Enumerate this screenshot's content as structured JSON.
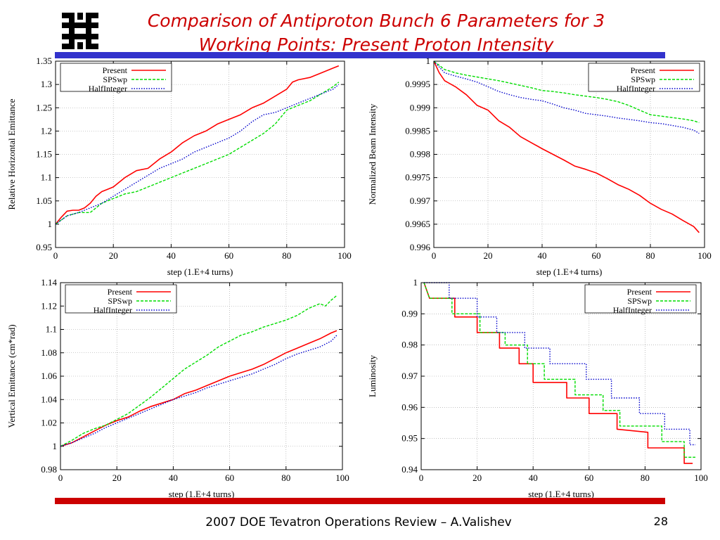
{
  "slide": {
    "title_line1": "Comparison of Antiproton Bunch 6 Parameters for 3",
    "title_line2": "Working Points: Present Proton Intensity",
    "footer": "2007 DOE Tevatron Operations Review – A.Valishev",
    "page_number": "28",
    "logo_icon": "fermilab-logo-icon",
    "colors": {
      "title": "#cc0000",
      "top_bar": "#3333cc",
      "bottom_bar": "#cc0000"
    }
  },
  "chart_data": [
    {
      "type": "line",
      "xlabel": "step (1.E+4 turns)",
      "ylabel": "Relative Horizontal Emittance",
      "xlim": [
        0,
        100
      ],
      "ylim": [
        0.95,
        1.35
      ],
      "xticks": [
        "0",
        "20",
        "40",
        "60",
        "80",
        "100"
      ],
      "yticks": [
        "0.95",
        "1",
        "1.05",
        "1.1",
        "1.15",
        "1.2",
        "1.25",
        "1.3",
        "1.35"
      ],
      "grid": true,
      "legend": "top-left",
      "series": [
        {
          "name": "Present",
          "color": "#ff0000",
          "dash": "solid",
          "x": [
            0,
            2,
            4,
            6,
            8,
            10,
            12,
            14,
            16,
            18,
            20,
            24,
            28,
            32,
            36,
            40,
            44,
            48,
            52,
            56,
            60,
            64,
            68,
            72,
            76,
            80,
            82,
            84,
            88,
            92,
            96,
            98
          ],
          "y": [
            1.0,
            1.015,
            1.028,
            1.03,
            1.03,
            1.035,
            1.045,
            1.06,
            1.07,
            1.075,
            1.08,
            1.1,
            1.115,
            1.12,
            1.14,
            1.155,
            1.175,
            1.19,
            1.2,
            1.215,
            1.225,
            1.235,
            1.25,
            1.26,
            1.275,
            1.29,
            1.305,
            1.31,
            1.315,
            1.325,
            1.335,
            1.34
          ]
        },
        {
          "name": "SPSwp",
          "color": "#00dd00",
          "dash": "dashed",
          "x": [
            0,
            4,
            8,
            12,
            16,
            20,
            24,
            28,
            32,
            36,
            40,
            44,
            48,
            52,
            56,
            60,
            64,
            68,
            72,
            76,
            80,
            84,
            88,
            92,
            96,
            98
          ],
          "y": [
            1.0,
            1.018,
            1.025,
            1.025,
            1.045,
            1.055,
            1.065,
            1.07,
            1.08,
            1.09,
            1.1,
            1.11,
            1.12,
            1.13,
            1.14,
            1.15,
            1.165,
            1.18,
            1.195,
            1.215,
            1.245,
            1.255,
            1.265,
            1.28,
            1.295,
            1.305
          ]
        },
        {
          "name": "HalfInteger",
          "color": "#0000cc",
          "dash": "dotted",
          "x": [
            0,
            4,
            8,
            12,
            16,
            20,
            24,
            28,
            32,
            36,
            40,
            44,
            48,
            52,
            56,
            60,
            64,
            68,
            72,
            76,
            80,
            84,
            88,
            92,
            96,
            98
          ],
          "y": [
            1.0,
            1.018,
            1.025,
            1.035,
            1.045,
            1.06,
            1.075,
            1.09,
            1.105,
            1.12,
            1.13,
            1.14,
            1.155,
            1.165,
            1.175,
            1.185,
            1.2,
            1.22,
            1.235,
            1.24,
            1.25,
            1.26,
            1.27,
            1.28,
            1.29,
            1.3
          ]
        }
      ]
    },
    {
      "type": "line",
      "xlabel": "step (1.E+4 turns)",
      "ylabel": "Normalized Beam Intensity",
      "xlim": [
        0,
        100
      ],
      "ylim": [
        0.996,
        1.0
      ],
      "xticks": [
        "0",
        "20",
        "40",
        "60",
        "80",
        "100"
      ],
      "yticks": [
        "0.996",
        "0.9965",
        "0.997",
        "0.9975",
        "0.998",
        "0.9985",
        "0.999",
        "0.9995",
        "1"
      ],
      "grid": true,
      "legend": "top-right",
      "series": [
        {
          "name": "Present",
          "color": "#ff0000",
          "dash": "solid",
          "x": [
            0,
            2,
            4,
            8,
            12,
            16,
            20,
            24,
            28,
            32,
            36,
            40,
            44,
            48,
            52,
            56,
            60,
            64,
            68,
            72,
            76,
            80,
            84,
            88,
            92,
            96,
            98
          ],
          "y": [
            1.0,
            0.99975,
            0.99958,
            0.99945,
            0.99928,
            0.99905,
            0.99895,
            0.99872,
            0.99858,
            0.99838,
            0.99825,
            0.99812,
            0.998,
            0.99788,
            0.99775,
            0.99768,
            0.9976,
            0.99748,
            0.99735,
            0.99725,
            0.99712,
            0.99695,
            0.99682,
            0.99672,
            0.99658,
            0.99645,
            0.99632
          ]
        },
        {
          "name": "SPSwp",
          "color": "#00dd00",
          "dash": "dashed",
          "x": [
            0,
            4,
            8,
            12,
            16,
            20,
            24,
            28,
            32,
            36,
            40,
            44,
            48,
            52,
            56,
            60,
            64,
            68,
            72,
            76,
            80,
            84,
            88,
            92,
            96,
            98
          ],
          "y": [
            1.0,
            0.99982,
            0.99975,
            0.9997,
            0.99966,
            0.99962,
            0.99958,
            0.99953,
            0.99948,
            0.99943,
            0.99937,
            0.99935,
            0.99932,
            0.99928,
            0.99925,
            0.99922,
            0.99918,
            0.99913,
            0.99905,
            0.99895,
            0.99885,
            0.99882,
            0.99879,
            0.99876,
            0.99872,
            0.99868
          ]
        },
        {
          "name": "HalfInteger",
          "color": "#0000cc",
          "dash": "dotted",
          "x": [
            0,
            4,
            8,
            12,
            16,
            20,
            24,
            28,
            32,
            36,
            40,
            44,
            48,
            52,
            56,
            60,
            64,
            68,
            72,
            76,
            80,
            84,
            88,
            92,
            96,
            98
          ],
          "y": [
            1.0,
            0.99975,
            0.99968,
            0.99962,
            0.99955,
            0.99945,
            0.99935,
            0.99928,
            0.99922,
            0.99918,
            0.99915,
            0.99908,
            0.999,
            0.99895,
            0.99888,
            0.99885,
            0.99882,
            0.99878,
            0.99875,
            0.99872,
            0.99868,
            0.99866,
            0.99862,
            0.99858,
            0.99852,
            0.99845
          ]
        }
      ]
    },
    {
      "type": "line",
      "xlabel": "step (1.E+4 turns)",
      "ylabel": "Vertical Emittance (cm*rad)",
      "xlim": [
        0,
        100
      ],
      "ylim": [
        0.98,
        1.14
      ],
      "xticks": [
        "0",
        "20",
        "40",
        "60",
        "80",
        "100"
      ],
      "yticks": [
        "0.98",
        "1",
        "1.02",
        "1.04",
        "1.06",
        "1.08",
        "1.1",
        "1.12",
        "1.14"
      ],
      "grid": true,
      "legend": "top-left",
      "series": [
        {
          "name": "Present",
          "color": "#ff0000",
          "dash": "solid",
          "x": [
            0,
            4,
            8,
            12,
            16,
            20,
            24,
            28,
            32,
            36,
            40,
            44,
            48,
            52,
            56,
            60,
            64,
            68,
            72,
            76,
            80,
            84,
            88,
            92,
            96,
            98
          ],
          "y": [
            1.0,
            1.003,
            1.008,
            1.013,
            1.018,
            1.022,
            1.025,
            1.03,
            1.034,
            1.037,
            1.04,
            1.045,
            1.048,
            1.052,
            1.056,
            1.06,
            1.063,
            1.066,
            1.07,
            1.075,
            1.08,
            1.084,
            1.088,
            1.092,
            1.097,
            1.099
          ]
        },
        {
          "name": "SPSwp",
          "color": "#00dd00",
          "dash": "dashed",
          "x": [
            0,
            4,
            8,
            12,
            16,
            20,
            24,
            28,
            32,
            36,
            40,
            44,
            48,
            52,
            56,
            60,
            64,
            68,
            72,
            76,
            80,
            84,
            88,
            92,
            94,
            96,
            98
          ],
          "y": [
            1.0,
            1.005,
            1.011,
            1.015,
            1.018,
            1.023,
            1.028,
            1.035,
            1.042,
            1.05,
            1.058,
            1.066,
            1.072,
            1.078,
            1.085,
            1.09,
            1.095,
            1.098,
            1.102,
            1.105,
            1.108,
            1.112,
            1.118,
            1.122,
            1.12,
            1.125,
            1.129
          ]
        },
        {
          "name": "HalfInteger",
          "color": "#0000cc",
          "dash": "dotted",
          "x": [
            0,
            4,
            8,
            12,
            16,
            20,
            24,
            28,
            32,
            36,
            40,
            44,
            48,
            52,
            56,
            60,
            64,
            68,
            72,
            76,
            80,
            84,
            88,
            92,
            96,
            98
          ],
          "y": [
            1.0,
            1.003,
            1.007,
            1.011,
            1.016,
            1.02,
            1.024,
            1.028,
            1.032,
            1.036,
            1.04,
            1.043,
            1.046,
            1.05,
            1.053,
            1.056,
            1.059,
            1.062,
            1.066,
            1.07,
            1.075,
            1.079,
            1.082,
            1.085,
            1.09,
            1.095
          ]
        }
      ]
    },
    {
      "type": "line",
      "xlabel": "step (1.E+4 turns)",
      "ylabel": "Luminosity",
      "xlim": [
        0,
        100
      ],
      "ylim": [
        0.94,
        1.0
      ],
      "xticks": [
        "0",
        "20",
        "40",
        "60",
        "80",
        "100"
      ],
      "yticks": [
        "0.94",
        "0.95",
        "0.96",
        "0.97",
        "0.98",
        "0.99",
        "1"
      ],
      "grid": true,
      "legend": "top-right",
      "series": [
        {
          "name": "Present",
          "color": "#ff0000",
          "dash": "solid",
          "x": [
            1,
            3,
            12,
            12,
            20,
            20,
            28,
            28,
            35,
            35,
            40,
            40,
            52,
            52,
            60,
            60,
            70,
            70,
            81,
            81,
            94,
            94,
            97
          ],
          "y": [
            1.0,
            0.995,
            0.995,
            0.989,
            0.989,
            0.984,
            0.984,
            0.979,
            0.979,
            0.974,
            0.974,
            0.968,
            0.968,
            0.963,
            0.963,
            0.958,
            0.958,
            0.953,
            0.952,
            0.947,
            0.947,
            0.942,
            0.942
          ]
        },
        {
          "name": "SPSwp",
          "color": "#00dd00",
          "dash": "dashed",
          "x": [
            1,
            3,
            11,
            11,
            21,
            21,
            30,
            30,
            38,
            38,
            44,
            44,
            55,
            55,
            65,
            65,
            71,
            71,
            78,
            78,
            86,
            86,
            94,
            94,
            98
          ],
          "y": [
            1.0,
            0.995,
            0.995,
            0.99,
            0.99,
            0.984,
            0.984,
            0.98,
            0.98,
            0.974,
            0.974,
            0.969,
            0.969,
            0.964,
            0.964,
            0.959,
            0.959,
            0.954,
            0.954,
            0.954,
            0.954,
            0.949,
            0.949,
            0.944,
            0.944
          ]
        },
        {
          "name": "HalfInteger",
          "color": "#0000cc",
          "dash": "dotted",
          "x": [
            1,
            10,
            10,
            20,
            20,
            27,
            27,
            37,
            37,
            46,
            46,
            59,
            59,
            68,
            68,
            78,
            78,
            87,
            87,
            96,
            96,
            98
          ],
          "y": [
            1.0,
            1.0,
            0.995,
            0.995,
            0.989,
            0.989,
            0.984,
            0.984,
            0.979,
            0.979,
            0.974,
            0.974,
            0.969,
            0.969,
            0.963,
            0.963,
            0.958,
            0.958,
            0.953,
            0.953,
            0.948,
            0.948
          ]
        }
      ]
    }
  ]
}
